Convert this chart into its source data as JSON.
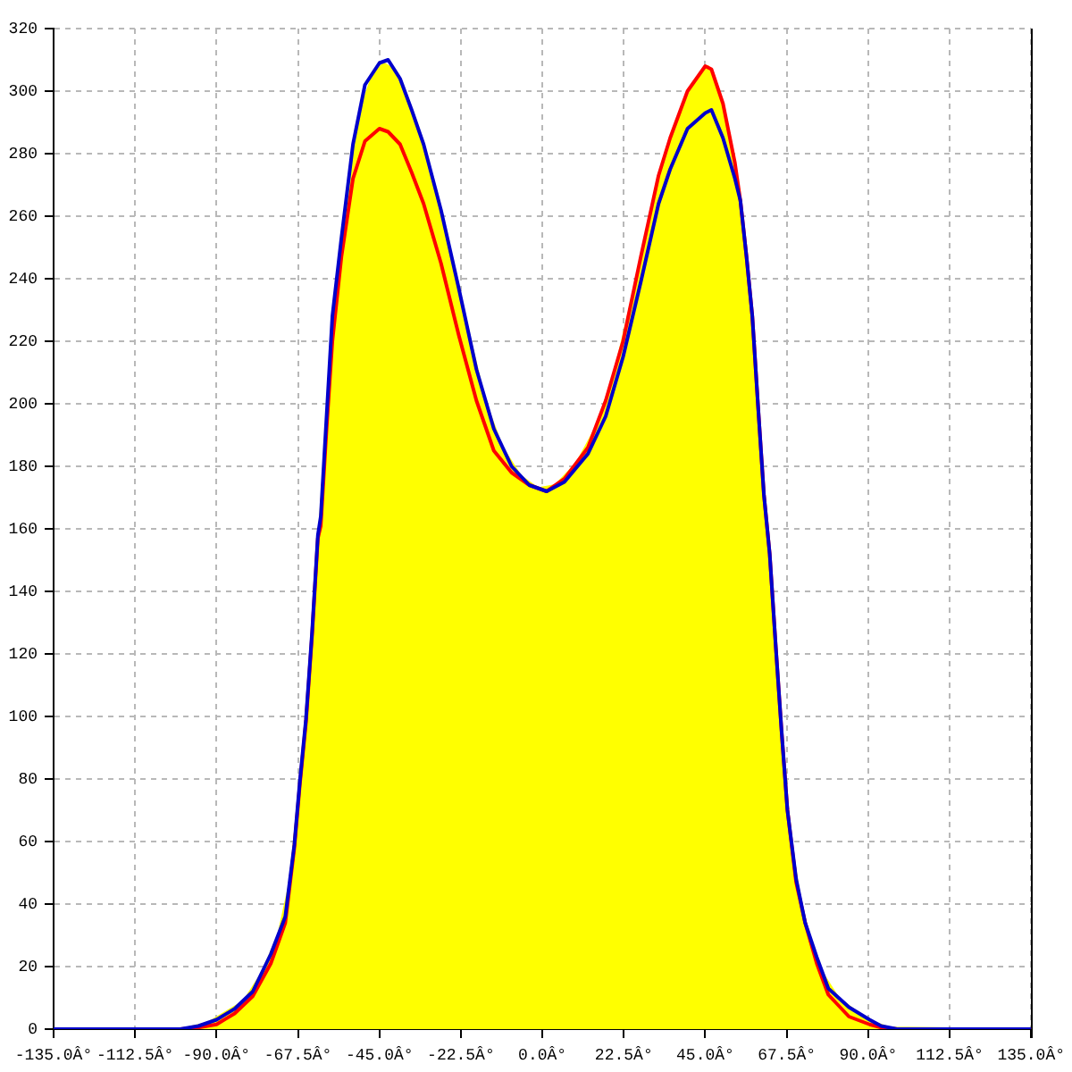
{
  "chart_data": {
    "type": "line",
    "x": [
      -135,
      -100,
      -95,
      -90,
      -85,
      -80,
      -75,
      -71,
      -68.5,
      -67,
      -65.3,
      -63.6,
      -62,
      -61.2,
      -59.6,
      -58,
      -55.5,
      -52.3,
      -49,
      -45,
      -42.6,
      -39.3,
      -36.1,
      -32.8,
      -28,
      -23.1,
      -18.2,
      -13.4,
      -8.5,
      -3.6,
      1.2,
      6.1,
      12.6,
      17.5,
      22.3,
      27.2,
      32.1,
      35.3,
      40.1,
      45,
      46.7,
      49.9,
      53.2,
      54.7,
      56.4,
      58,
      59.6,
      61.2,
      62.8,
      64.5,
      66.1,
      67.7,
      70.1,
      72.6,
      75.8,
      79,
      84.7,
      90.4,
      93.6,
      98,
      135
    ],
    "series": [
      {
        "color": "#0000cc",
        "values": [
          0,
          0,
          1,
          3,
          6.5,
          12,
          24,
          36,
          59,
          79,
          99,
          127,
          158,
          164,
          196,
          228,
          253,
          283,
          302,
          309,
          310,
          304,
          294,
          283,
          262,
          237,
          211,
          192,
          180,
          174,
          172,
          175,
          184,
          196,
          215,
          239,
          264,
          275,
          288,
          293,
          294,
          285,
          272,
          265,
          247,
          228,
          199,
          171,
          152,
          122,
          95,
          70,
          48,
          34,
          23,
          13,
          7,
          3,
          1,
          0,
          0
        ]
      },
      {
        "color": "#ff0000",
        "values": [
          0,
          0,
          0.5,
          1.5,
          5,
          10.5,
          21,
          34,
          58,
          78,
          98,
          126,
          157,
          161,
          192,
          220,
          247,
          272,
          284,
          288,
          287,
          283,
          274,
          264,
          245,
          222,
          201,
          185,
          178,
          174,
          172,
          176,
          186,
          201,
          220,
          247,
          273,
          285,
          300,
          308,
          307,
          296,
          277,
          265,
          247,
          228,
          199,
          171,
          152,
          122,
          95,
          70,
          47,
          34,
          21,
          11,
          4,
          1.5,
          0.5,
          0,
          0
        ]
      },
      {
        "type": "area",
        "color": "#ffff00",
        "x": [
          -135,
          -100,
          -92.5,
          -82.5,
          -77.5,
          -73,
          -69.8,
          -66.2,
          -64.4,
          -62.8,
          -60.4,
          -56.8,
          -53.9,
          -50.6,
          -47,
          -43.8,
          -41,
          -37.7,
          -34.5,
          -30.4,
          -25.6,
          -20.6,
          -15.8,
          -11,
          -6,
          -1.2,
          3.6,
          9.4,
          15,
          19.9,
          24.8,
          29.6,
          33.7,
          37.7,
          42.5,
          45.8,
          48.3,
          51.5,
          54,
          55.5,
          57.2,
          58.8,
          60.4,
          62,
          63.6,
          65.3,
          66.9,
          68.9,
          71.3,
          74.2,
          77.4,
          81.8,
          87.5,
          92,
          96,
          135
        ],
        "values": [
          0,
          0,
          2,
          9,
          18,
          30,
          47,
          88,
          114,
          142,
          180,
          240,
          268,
          293,
          305,
          309,
          307,
          299,
          289,
          272,
          250,
          224,
          201,
          186,
          177,
          173,
          174,
          181,
          193,
          210,
          234,
          260,
          279,
          292,
          304,
          308,
          301,
          287,
          271,
          256,
          238,
          214,
          185,
          162,
          138,
          108,
          82,
          59,
          41,
          28,
          18,
          10,
          5,
          2,
          0.5,
          0
        ]
      }
    ],
    "xlim": [
      -135,
      135
    ],
    "xticks": [
      {
        "value": -135,
        "label": "-135.0Â°"
      },
      {
        "value": -112.5,
        "label": "-112.5Â°"
      },
      {
        "value": -90,
        "label": "-90.0Â°"
      },
      {
        "value": -67.5,
        "label": "-67.5Â°"
      },
      {
        "value": -45,
        "label": "-45.0Â°"
      },
      {
        "value": -22.5,
        "label": "-22.5Â°"
      },
      {
        "value": 0,
        "label": "0.0Â°"
      },
      {
        "value": 22.5,
        "label": "22.5Â°"
      },
      {
        "value": 45,
        "label": "45.0Â°"
      },
      {
        "value": 67.5,
        "label": "67.5Â°"
      },
      {
        "value": 90,
        "label": "90.0Â°"
      },
      {
        "value": 112.5,
        "label": "112.5Â°"
      },
      {
        "value": 135,
        "label": "135.0Â°"
      }
    ],
    "ylim": [
      0,
      320
    ],
    "yticks": [
      0,
      20,
      40,
      60,
      80,
      100,
      120,
      140,
      160,
      180,
      200,
      220,
      240,
      260,
      280,
      300,
      320
    ],
    "grid": true,
    "legend": false
  }
}
